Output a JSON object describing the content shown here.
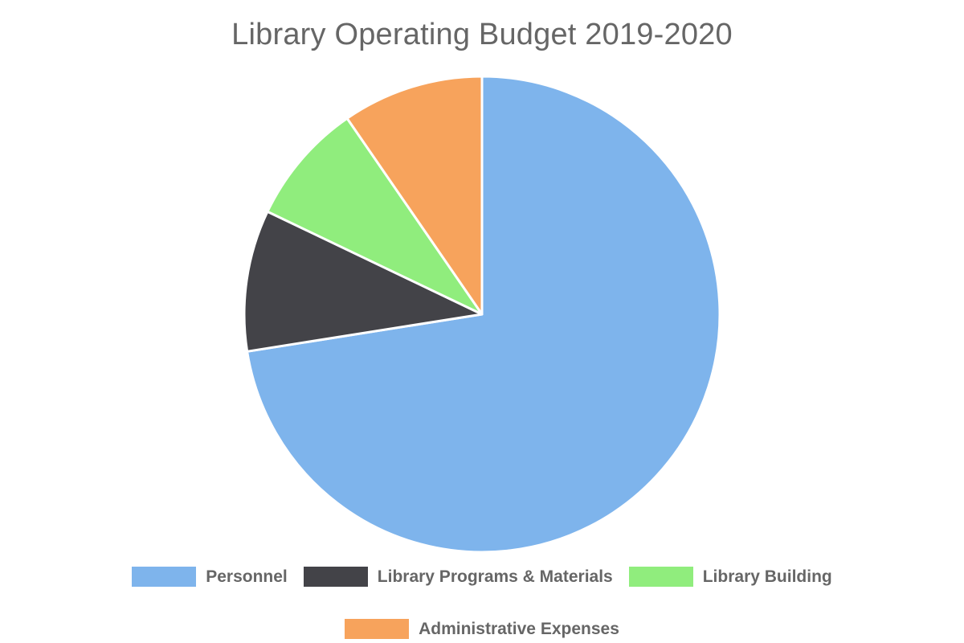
{
  "chart_data": {
    "type": "pie",
    "title": "Library Operating Budget 2019-2020",
    "categories": [
      "Personnel",
      "Library Programs & Materials",
      "Library Building",
      "Administrative Expenses"
    ],
    "values": [
      72.5,
      9.6,
      8.3,
      9.6
    ],
    "colors": [
      "#7eb4ec",
      "#434348",
      "#90ed7d",
      "#f7a35c"
    ],
    "legend_position": "bottom"
  }
}
